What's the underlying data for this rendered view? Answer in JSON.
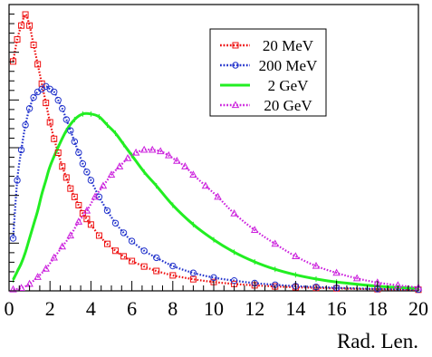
{
  "chart_data": {
    "type": "line",
    "title": "",
    "xlabel": "Rad. Len.",
    "ylabel": "",
    "xlim": [
      0,
      20
    ],
    "ylim": [
      0,
      1
    ],
    "x_ticks": [
      "0",
      "2",
      "4",
      "6",
      "8",
      "10",
      "12",
      "14",
      "16",
      "18",
      "20"
    ],
    "grid": false,
    "legend_position": "top-right",
    "series": [
      {
        "name": "20 MeV",
        "color": "#ee1111",
        "line": "dotted",
        "marker": "open-square",
        "peak_x": 0.75,
        "x": [
          0.2,
          0.4,
          0.6,
          0.8,
          1,
          1.2,
          1.4,
          1.6,
          1.8,
          2,
          2.2,
          2.4,
          2.6,
          2.8,
          3,
          3.2,
          3.4,
          3.6,
          3.8,
          4,
          4.4,
          4.8,
          5.2,
          5.6,
          6,
          6.6,
          7.2,
          8,
          9,
          10,
          11,
          12,
          13,
          14,
          15,
          16,
          18,
          20
        ],
        "y": [
          0.83,
          0.91,
          0.96,
          1.0,
          0.96,
          0.89,
          0.82,
          0.75,
          0.68,
          0.61,
          0.55,
          0.5,
          0.45,
          0.41,
          0.37,
          0.34,
          0.31,
          0.28,
          0.26,
          0.24,
          0.2,
          0.17,
          0.145,
          0.125,
          0.108,
          0.088,
          0.072,
          0.056,
          0.042,
          0.032,
          0.025,
          0.02,
          0.016,
          0.013,
          0.011,
          0.009,
          0.006,
          0.004
        ]
      },
      {
        "name": "200 MeV",
        "color": "#2233cc",
        "line": "dotted",
        "marker": "open-circle",
        "peak_x": 1.8,
        "x": [
          0.2,
          0.4,
          0.6,
          0.8,
          1,
          1.2,
          1.4,
          1.6,
          1.8,
          2,
          2.2,
          2.4,
          2.6,
          2.8,
          3,
          3.2,
          3.4,
          3.6,
          3.8,
          4,
          4.4,
          4.8,
          5.2,
          5.6,
          6,
          6.6,
          7.2,
          8,
          9,
          10,
          11,
          12,
          13,
          14,
          15,
          16,
          18,
          20
        ],
        "y": [
          0.19,
          0.4,
          0.51,
          0.6,
          0.66,
          0.7,
          0.72,
          0.73,
          0.74,
          0.73,
          0.72,
          0.69,
          0.66,
          0.62,
          0.58,
          0.54,
          0.5,
          0.46,
          0.43,
          0.4,
          0.34,
          0.29,
          0.245,
          0.21,
          0.18,
          0.145,
          0.12,
          0.09,
          0.065,
          0.048,
          0.037,
          0.028,
          0.022,
          0.017,
          0.014,
          0.011,
          0.007,
          0.005
        ]
      },
      {
        "name": "2 GeV",
        "color": "#22ee22",
        "line": "solid",
        "marker": "none",
        "peak_x": 3.9,
        "x": [
          0.2,
          0.4,
          0.6,
          0.8,
          1,
          1.2,
          1.4,
          1.6,
          1.8,
          2,
          2.4,
          2.8,
          3.2,
          3.6,
          4,
          4.4,
          4.8,
          5.2,
          5.6,
          6,
          6.6,
          7.2,
          8,
          9,
          10,
          11,
          12,
          13,
          14,
          15,
          16,
          18,
          20
        ],
        "y": [
          0.04,
          0.07,
          0.1,
          0.14,
          0.19,
          0.24,
          0.29,
          0.35,
          0.4,
          0.45,
          0.52,
          0.58,
          0.62,
          0.64,
          0.64,
          0.63,
          0.6,
          0.57,
          0.53,
          0.49,
          0.43,
          0.38,
          0.31,
          0.24,
          0.185,
          0.14,
          0.105,
          0.078,
          0.058,
          0.043,
          0.032,
          0.017,
          0.009
        ]
      },
      {
        "name": "20 GeV",
        "color": "#cc22dd",
        "line": "dotted",
        "marker": "open-triangle",
        "peak_x": 6.7,
        "x": [
          0.2,
          0.6,
          1,
          1.4,
          1.8,
          2.2,
          2.6,
          3,
          3.4,
          3.8,
          4.2,
          4.6,
          5,
          5.4,
          5.8,
          6.2,
          6.6,
          7,
          7.4,
          7.8,
          8.2,
          8.6,
          9,
          9.6,
          10.2,
          11,
          12,
          13,
          14,
          15,
          16,
          17,
          18,
          19,
          20
        ],
        "y": [
          0.005,
          0.01,
          0.025,
          0.05,
          0.08,
          0.12,
          0.16,
          0.2,
          0.25,
          0.29,
          0.34,
          0.38,
          0.42,
          0.45,
          0.48,
          0.5,
          0.51,
          0.51,
          0.505,
          0.49,
          0.47,
          0.45,
          0.42,
          0.38,
          0.34,
          0.28,
          0.22,
          0.17,
          0.125,
          0.09,
          0.065,
          0.045,
          0.03,
          0.02,
          0.012
        ]
      }
    ]
  }
}
